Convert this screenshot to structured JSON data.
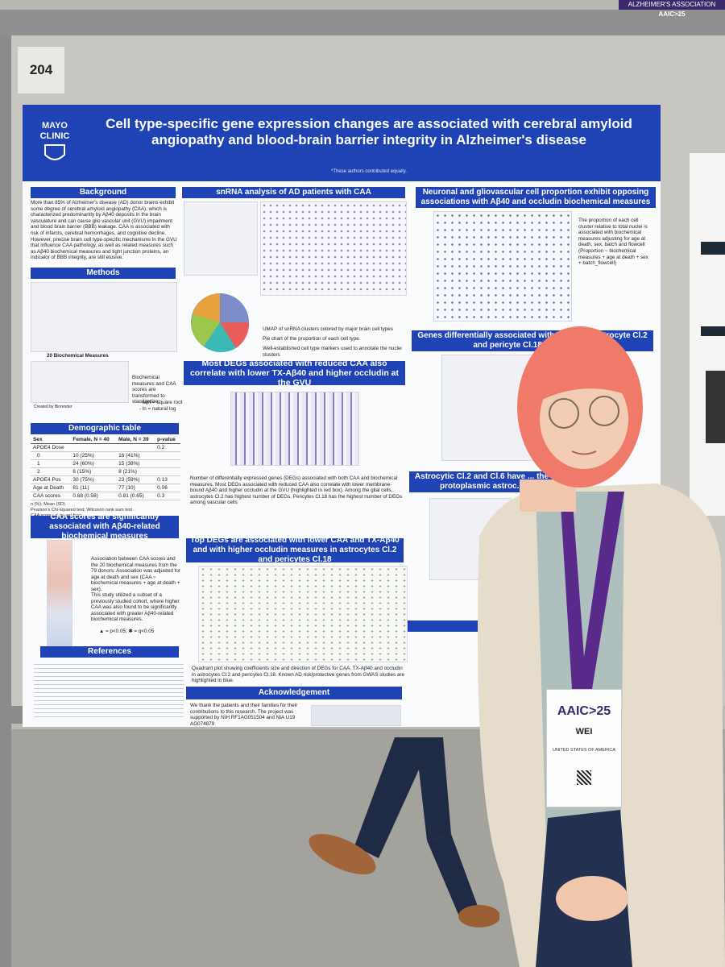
{
  "board_number": "204",
  "banner": {
    "org": "ALZHEIMER'S ASSOCIATION",
    "event": "AAIC>25"
  },
  "poster": {
    "logo": "MAYO CLINIC",
    "title": "Cell type-specific gene expression changes are associated with cerebral amyloid angiopathy and blood-brain barrier integrity in Alzheimer's disease",
    "authors_note": "*These authors contributed equally.",
    "background": {
      "heading": "Background",
      "text": "More than 85% of Alzheimer's disease (AD) donor brains exhibit some degree of cerebral amyloid angiopathy (CAA), which is characterized predominantly by Aβ40 deposits in the brain vasculature and can cause glio vascular unit (GVU) impairment and blood brain barrier (BBB) leakage. CAA is associated with risk of infarcts, cerebral hemorrhages, and cognitive decline. However, precise brain cell type-specific mechanisms in the GVU that influence CAA pathology, as well as related measures such as Aβ40 biochemical measures and tight junction proteins, an indicator of BBB integrity, are still elusive."
    },
    "methods": {
      "heading": "Methods",
      "measures_label": "20 Biochemical Measures",
      "note": "Biochemical measures and CAA scores are transformed to standardize:",
      "transforms": [
        "- sqrt = square root",
        "- ln = natural log"
      ],
      "credit": "Created by Biorender"
    },
    "demographics": {
      "heading": "Demographic table",
      "header": [
        "Sex",
        "Female, N = 40",
        "Male, N = 39",
        "p-value"
      ],
      "rows": [
        [
          "APOE4 Dose",
          "",
          "",
          "0.2"
        ],
        [
          "0",
          "10 (25%)",
          "16 (41%)",
          ""
        ],
        [
          "1",
          "24 (60%)",
          "15 (38%)",
          ""
        ],
        [
          "2",
          "6 (15%)",
          "8 (21%)",
          ""
        ],
        [
          "APOE4 Pos",
          "30 (75%)",
          "23 (59%)",
          "0.13"
        ],
        [
          "Age at Death",
          "81 (11)",
          "77 (10)",
          "0.06"
        ],
        [
          "CAA scores",
          "0.68 (0.58)",
          "0.81 (0.65)",
          "0.3"
        ]
      ],
      "footnotes": [
        "n (%); Mean (SD)",
        "Pearson's Chi-squared test; Wilcoxon rank sum test",
        "CAA scores obtained from"
      ]
    },
    "caa_section": {
      "heading": "CAA scores are significantly associated with Aβ40-related biochemical measures",
      "text": "Association between CAA scores and the 20 biochemical measures from the 79 donors. Association was adjusted for age at death and sex (CAA ~ biochemical measures + age at death + sex).",
      "text2": "This study utilized a subset of a previously studied cohort, where higher CAA was also found to be significantly associated with greater Aβ40-related biochemical measures.",
      "legend": "▲ = p<0.05; ✱ = q<0.05"
    },
    "references": {
      "heading": "References"
    },
    "snrna": {
      "heading": "snRNA analysis of AD patients with CAA",
      "captions": [
        "UMAP of snRNA clusters colored by major brain cell types",
        "Pie chart of the proportion of each cell type.",
        "Well-established cell type markers used to annotate the nuclei clusters"
      ]
    },
    "most_degs": {
      "heading": "Most DEGs associated with reduced CAA also correlate with lower TX-Aβ40 and higher occludin at the GVU",
      "text": "Number of differentially expressed genes (DEGs) associated with both CAA and biochemical measures. Most DEGs associated with reduced CAA also correlate with lower membrane-bound Aβ40 and higher occludin at the GVU (highlighted in red box). Among the glial cells, astrocytes Cl.2 has highest number of DEGs. Pericytes Cl.18 has the highest number of DEGs among vascular cells"
    },
    "top_degs": {
      "heading": "Top DEGs are associated with lower CAA and TX-Aβ40 and with higher occludin measures in astrocytes Cl.2 and pericytes Cl.18",
      "text": "Quadrant plot showing coefficients size and direction of DEGs for CAA, TX-Aβ40 and occludin in astrocytes Cl.2 and pericytes Cl.18. Known AD risk/protective genes from GWAS studies are highlighted in blue."
    },
    "acknowledgement": {
      "heading": "Acknowledgement",
      "text": "We thank the patients and their families for their contributions to this research. The project was supported by NIH RF1AG051504 and NIA U19 AG074879"
    },
    "proportions": {
      "heading": "Neuronal and gliovascular cell proportion exhibit opposing associations with Aβ40 and occludin biochemical measures",
      "text": "The proportion of each cell cluster relative to total nuclei is associated with biochemical measures adjusting for age at death, sex, batch and flowcell (Proportion ~ biochemical measures + age at death + sex + batch_flowcell)"
    },
    "genes": {
      "heading": "Genes differentially associated with CAA ... in astrocyte Cl.2 and pericyte Cl.18 are e... ways"
    },
    "astro": {
      "heading": "Astrocytic Cl.2 and Cl.6 have ... the protoplasmic astroc..."
    }
  },
  "badge": {
    "event": "AAIC>25",
    "name": "WEI",
    "country": "UNITED STATES OF AMERICA"
  }
}
